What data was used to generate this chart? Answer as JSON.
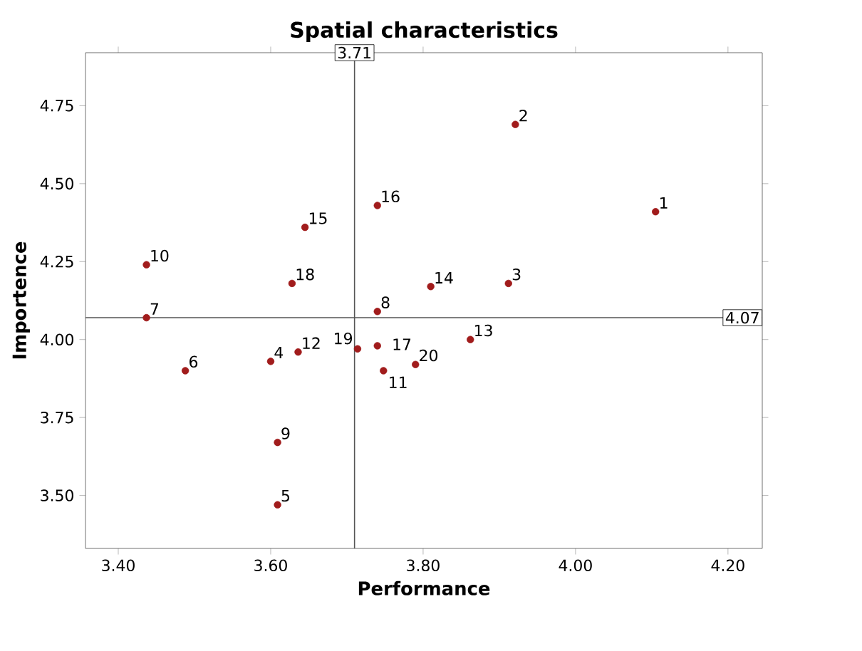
{
  "chart_data": {
    "type": "scatter",
    "title": "Spatial characteristics",
    "xlabel": "Performance",
    "ylabel": "Importence",
    "series": [
      {
        "color": "#a11c1c",
        "x": [
          4.105,
          3.921,
          3.912,
          3.6,
          3.609,
          3.488,
          3.437,
          3.74,
          3.609,
          3.437,
          3.748,
          3.636,
          3.862,
          3.81,
          3.645,
          3.74,
          3.74,
          3.628,
          3.714,
          3.79
        ],
        "values": [
          4.41,
          4.69,
          4.18,
          3.93,
          3.47,
          3.9,
          4.07,
          4.09,
          3.67,
          4.24,
          3.9,
          3.96,
          4.0,
          4.17,
          4.36,
          4.43,
          3.98,
          4.18,
          3.97,
          3.92
        ]
      }
    ],
    "annotations": [
      {
        "text": "1",
        "x": 4.105,
        "y": 4.41
      },
      {
        "text": "2",
        "x": 3.921,
        "y": 4.69
      },
      {
        "text": "3",
        "x": 3.912,
        "y": 4.18
      },
      {
        "text": "4",
        "x": 3.6,
        "y": 3.93
      },
      {
        "text": "5",
        "x": 3.609,
        "y": 3.47
      },
      {
        "text": "6",
        "x": 3.488,
        "y": 3.9
      },
      {
        "text": "7",
        "x": 3.437,
        "y": 4.07
      },
      {
        "text": "8",
        "x": 3.74,
        "y": 4.09
      },
      {
        "text": "9",
        "x": 3.609,
        "y": 3.67
      },
      {
        "text": "10",
        "x": 3.437,
        "y": 4.24
      },
      {
        "text": "11",
        "x": 3.748,
        "y": 3.9
      },
      {
        "text": "12",
        "x": 3.636,
        "y": 3.96
      },
      {
        "text": "13",
        "x": 3.862,
        "y": 4.0
      },
      {
        "text": "14",
        "x": 3.81,
        "y": 4.17
      },
      {
        "text": "15",
        "x": 3.645,
        "y": 4.36
      },
      {
        "text": "16",
        "x": 3.74,
        "y": 4.43
      },
      {
        "text": "17",
        "x": 3.74,
        "y": 3.98
      },
      {
        "text": "18",
        "x": 3.628,
        "y": 4.18
      },
      {
        "text": "19",
        "x": 3.714,
        "y": 3.97
      },
      {
        "text": "20",
        "x": 3.79,
        "y": 3.92
      }
    ],
    "ref_lines": [
      {
        "axis": "x",
        "value": 3.71,
        "label": "3.71",
        "color": "#555555"
      },
      {
        "axis": "y",
        "value": 4.07,
        "label": "4.07",
        "color": "#555555"
      }
    ],
    "xlim": [
      3.357,
      4.245
    ],
    "ylim": [
      3.33,
      4.92
    ],
    "xticks": [
      {
        "value": 3.4,
        "label": "3.40"
      },
      {
        "value": 3.6,
        "label": "3.60"
      },
      {
        "value": 3.8,
        "label": "3.80"
      },
      {
        "value": 4.0,
        "label": "4.00"
      },
      {
        "value": 4.2,
        "label": "4.20"
      }
    ],
    "yticks": [
      {
        "value": 3.5,
        "label": "3.50"
      },
      {
        "value": 3.75,
        "label": "3.75"
      },
      {
        "value": 4.0,
        "label": "4.00"
      },
      {
        "value": 4.25,
        "label": "4.25"
      },
      {
        "value": 4.5,
        "label": "4.50"
      },
      {
        "value": 4.75,
        "label": "4.75"
      }
    ],
    "marker": "circle",
    "grid": false
  }
}
